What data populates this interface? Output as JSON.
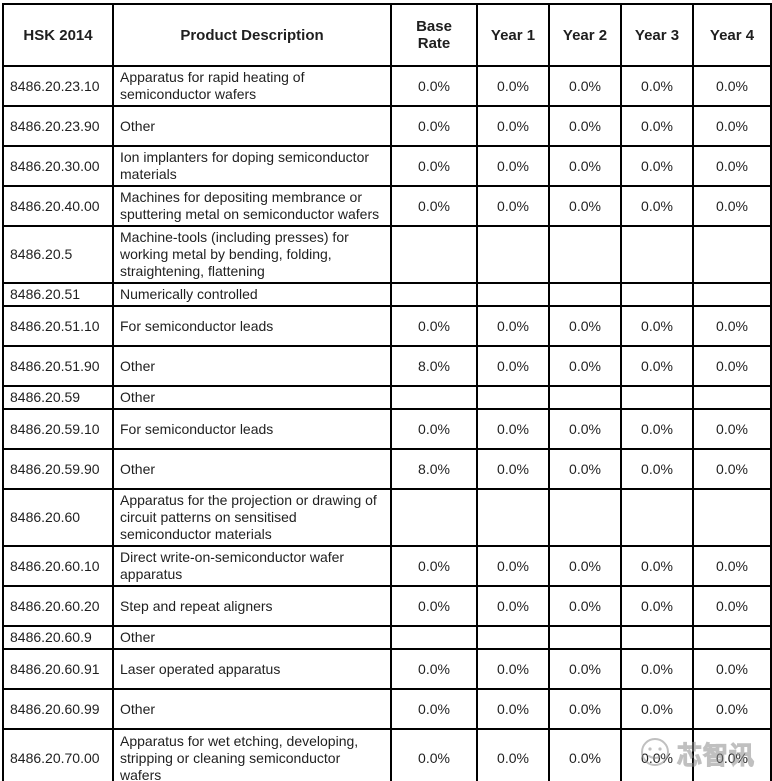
{
  "table": {
    "headers": [
      "HSK 2014",
      "Product Description",
      "Base Rate",
      "Year 1",
      "Year 2",
      "Year 3",
      "Year 4"
    ],
    "rows": [
      {
        "code": "8486.20.23.10",
        "description": "Apparatus for rapid heating of semiconductor wafers",
        "rates": [
          "0.0%",
          "0.0%",
          "0.0%",
          "0.0%",
          "0.0%"
        ]
      },
      {
        "code": "8486.20.23.90",
        "description": "Other",
        "rates": [
          "0.0%",
          "0.0%",
          "0.0%",
          "0.0%",
          "0.0%"
        ]
      },
      {
        "code": "8486.20.30.00",
        "description": "Ion implanters for doping semiconductor materials",
        "rates": [
          "0.0%",
          "0.0%",
          "0.0%",
          "0.0%",
          "0.0%"
        ]
      },
      {
        "code": "8486.20.40.00",
        "description": "Machines for depositing membrance or sputtering metal on semiconductor wafers",
        "rates": [
          "0.0%",
          "0.0%",
          "0.0%",
          "0.0%",
          "0.0%"
        ]
      },
      {
        "code": "8486.20.5",
        "description": "Machine-tools (including presses) for working metal by bending, folding, straightening, flattening",
        "rates": [
          "",
          "",
          "",
          "",
          ""
        ]
      },
      {
        "code": "8486.20.51",
        "description": "Numerically controlled",
        "rates": [
          "",
          "",
          "",
          "",
          ""
        ]
      },
      {
        "code": "8486.20.51.10",
        "description": "For semiconductor leads",
        "rates": [
          "0.0%",
          "0.0%",
          "0.0%",
          "0.0%",
          "0.0%"
        ]
      },
      {
        "code": "8486.20.51.90",
        "description": "Other",
        "rates": [
          "8.0%",
          "0.0%",
          "0.0%",
          "0.0%",
          "0.0%"
        ]
      },
      {
        "code": "8486.20.59",
        "description": "Other",
        "rates": [
          "",
          "",
          "",
          "",
          ""
        ]
      },
      {
        "code": "8486.20.59.10",
        "description": "For semiconductor leads",
        "rates": [
          "0.0%",
          "0.0%",
          "0.0%",
          "0.0%",
          "0.0%"
        ]
      },
      {
        "code": "8486.20.59.90",
        "description": "Other",
        "rates": [
          "8.0%",
          "0.0%",
          "0.0%",
          "0.0%",
          "0.0%"
        ]
      },
      {
        "code": "8486.20.60",
        "description": "Apparatus for the projection or drawing of circuit patterns on sensitised semiconductor materials",
        "rates": [
          "",
          "",
          "",
          "",
          ""
        ]
      },
      {
        "code": "8486.20.60.10",
        "description": "Direct write-on-semiconductor wafer apparatus",
        "rates": [
          "0.0%",
          "0.0%",
          "0.0%",
          "0.0%",
          "0.0%"
        ]
      },
      {
        "code": "8486.20.60.20",
        "description": "Step and repeat aligners",
        "rates": [
          "0.0%",
          "0.0%",
          "0.0%",
          "0.0%",
          "0.0%"
        ]
      },
      {
        "code": "8486.20.60.9",
        "description": "Other",
        "rates": [
          "",
          "",
          "",
          "",
          ""
        ]
      },
      {
        "code": "8486.20.60.91",
        "description": "Laser operated apparatus",
        "rates": [
          "0.0%",
          "0.0%",
          "0.0%",
          "0.0%",
          "0.0%"
        ]
      },
      {
        "code": "8486.20.60.99",
        "description": "Other",
        "rates": [
          "0.0%",
          "0.0%",
          "0.0%",
          "0.0%",
          "0.0%"
        ]
      },
      {
        "code": "8486.20.70.00",
        "description": "Apparatus for wet etching, developing, stripping or cleaning semiconductor wafers",
        "rates": [
          "0.0%",
          "0.0%",
          "0.0%",
          "0.0%",
          "0.0%"
        ]
      }
    ]
  },
  "watermark": {
    "text": "芯智讯"
  },
  "colors": {
    "border": "#000000",
    "text": "#1f1f1f",
    "background": "#ffffff",
    "watermark": "#8d8d8d"
  }
}
